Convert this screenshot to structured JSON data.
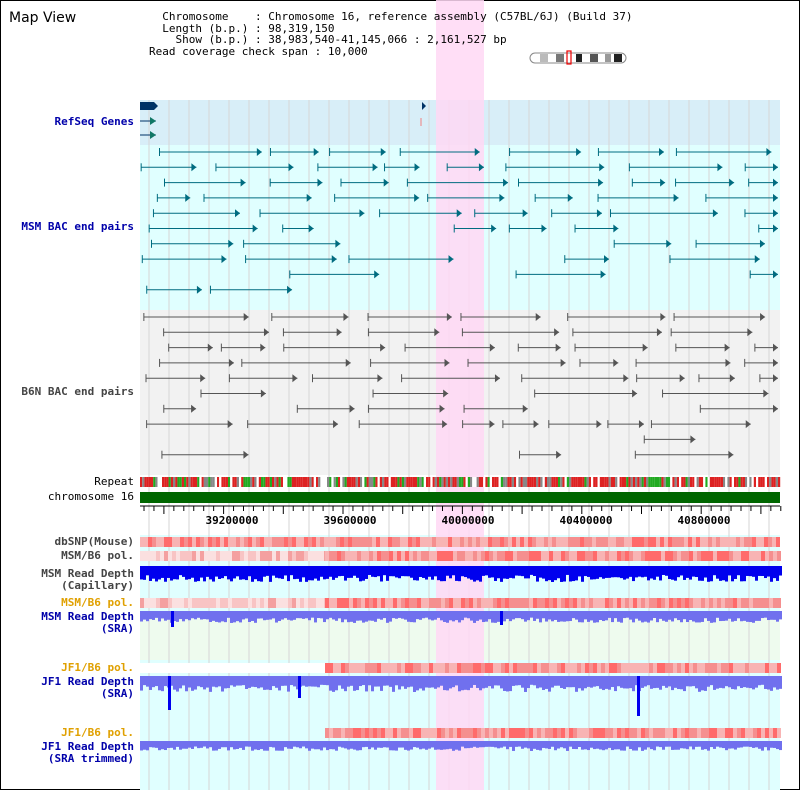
{
  "view_title": "Map View",
  "info": {
    "chromosome_label": "Chromosome",
    "chromosome_value": "Chromosome 16, reference assembly (C57BL/6J) (Build 37)",
    "length_label": "Length (b.p.)",
    "length_value": "98,319,150",
    "show_label": "Show (b.p.)",
    "show_value": "38,983,540-41,145,066 : 2,161,527 bp",
    "coverage_label": "Read coverage check span",
    "coverage_value": "10,000"
  },
  "tracks": {
    "refseq": "RefSeq Genes",
    "msm_bac": "MSM BAC end pairs",
    "b6n_bac": "B6N BAC end pairs",
    "repeat": "Repeat",
    "chromosome": "chromosome 16",
    "dbsnp": "dbSNP(Mouse)",
    "msm_b6_pol_1": "MSM/B6 pol.",
    "msm_read_depth_cap": "MSM Read Depth\n(Capillary)",
    "msm_b6_pol_2": "MSM/B6 pol.",
    "msm_read_depth_sra": "MSM Read Depth\n(SRA)",
    "jf1_b6_pol_1": "JF1/B6 pol.",
    "jf1_read_depth_sra": "JF1 Read Depth\n(SRA)",
    "jf1_b6_pol_2": "JF1/B6 pol.",
    "jf1_read_depth_trimmed": "JF1 Read Depth\n(SRA trimmed)"
  },
  "axis": {
    "ticks": [
      "39200000",
      "39600000",
      "40000000",
      "40400000",
      "40800000"
    ]
  },
  "colors": {
    "track_bg": "#e0ffff",
    "refseq_bg": "#d8eef8",
    "b6n_bg": "#f2f2f2",
    "highlight": "#ffd8f4",
    "msm_feature": "#006c80",
    "b6n_feature": "#555555",
    "chromosome_bar": "#006600",
    "depth_dark": "#0000ee",
    "depth_light": "#7070ee"
  }
}
